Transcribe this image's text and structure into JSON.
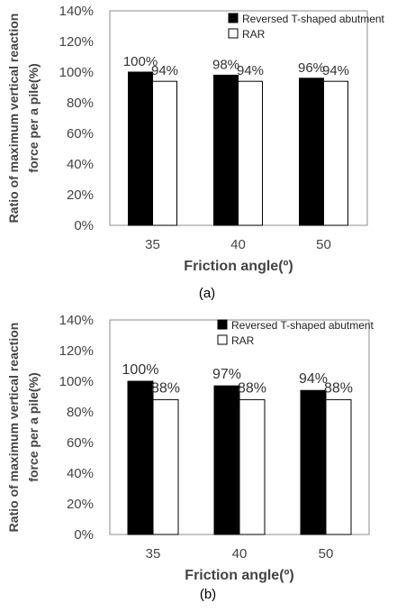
{
  "chart_data": [
    {
      "type": "bar",
      "panel_label": "(a)",
      "categories": [
        "35",
        "40",
        "50"
      ],
      "series": [
        {
          "name": "Reversed T-shaped abutment",
          "values": [
            100,
            98,
            96
          ],
          "color": "#000000",
          "labels": [
            "100%",
            "98%",
            "96%"
          ]
        },
        {
          "name": "RAR",
          "values": [
            94,
            94,
            94
          ],
          "color": "#ffffff",
          "labels": [
            "94%",
            "94%",
            "94%"
          ]
        }
      ],
      "y_ticks": [
        "0%",
        "20%",
        "40%",
        "60%",
        "80%",
        "100%",
        "120%",
        "140%"
      ],
      "ylim": [
        0,
        140
      ],
      "xlabel": "Friction angle(º)",
      "ylabel_lines": [
        "Ratio of maximum vertical reaction",
        "force per a pile(%)"
      ],
      "legend_position": "top-right",
      "grid": false
    },
    {
      "type": "bar",
      "panel_label": "(b)",
      "categories": [
        "35",
        "40",
        "50"
      ],
      "series": [
        {
          "name": "Reversed T-shaped abutment",
          "values": [
            100,
            97,
            94
          ],
          "color": "#000000",
          "labels": [
            "100%",
            "97%",
            "94%"
          ]
        },
        {
          "name": "RAR",
          "values": [
            88,
            88,
            88
          ],
          "color": "#ffffff",
          "labels": [
            "88%",
            "88%",
            "88%"
          ]
        }
      ],
      "y_ticks": [
        "0%",
        "20%",
        "40%",
        "60%",
        "80%",
        "100%",
        "120%",
        "140%"
      ],
      "ylim": [
        0,
        140
      ],
      "xlabel": "Friction angle(º)",
      "ylabel_lines": [
        "Ratio of maximum vertical reaction",
        "force per a pile(%)"
      ],
      "legend_position": "top-right",
      "grid": false
    }
  ]
}
